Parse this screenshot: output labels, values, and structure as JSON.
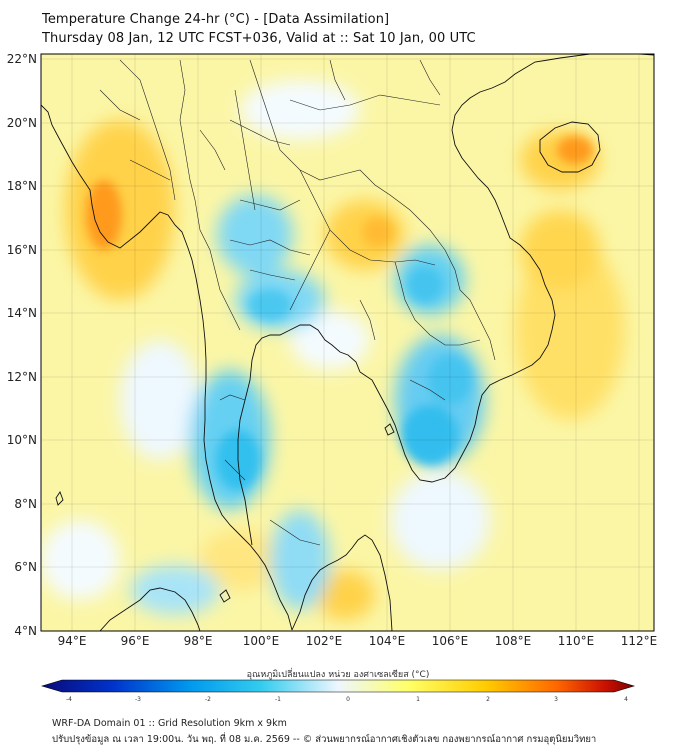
{
  "header": {
    "title_line1": "Temperature Change 24-hr (°C) - [Data Assimilation]",
    "title_line2": "Thursday 08 Jan, 12 UTC FCST+036, Valid at :: Sat 10 Jan, 00 UTC"
  },
  "map": {
    "lat_labels": [
      "22°N",
      "20°N",
      "18°N",
      "16°N",
      "14°N",
      "12°N",
      "10°N",
      "8°N",
      "6°N",
      "4°N"
    ],
    "lon_labels": [
      "94°E",
      "96°E",
      "98°E",
      "100°E",
      "102°E",
      "104°E",
      "106°E",
      "108°E",
      "110°E",
      "112°E"
    ],
    "lat_range": [
      4,
      22.2
    ],
    "lon_range": [
      93,
      112.4
    ],
    "gridlines": true
  },
  "colorbar": {
    "title": "อุณหภูมิเปลี่ยนแปลง หน่วย องศาเซลเซียส (°C)",
    "ticks": [
      "-4",
      "-3",
      "-2",
      "-1",
      "0",
      "1",
      "2",
      "3",
      "4"
    ],
    "range": [
      -4,
      4
    ],
    "colors": [
      "#0a0a7a",
      "#0033cc",
      "#0099ee",
      "#33ccee",
      "#eef6ff",
      "#ffff66",
      "#ffcc00",
      "#ff6600",
      "#cc1100",
      "#7a0000"
    ]
  },
  "footer": {
    "line1": "WRF-DA Domain 01 :: Grid Resolution 9km x 9km",
    "line2": "ปรับปรุงข้อมูล ณ เวลา 19:00น. วัน พฤ. ที่ 08 ม.ค. 2569 -- © ส่วนพยากรณ์อากาศเชิงตัวเลข กองพยากรณ์อากาศ กรมอุตุนิยมวิทยา"
  }
}
